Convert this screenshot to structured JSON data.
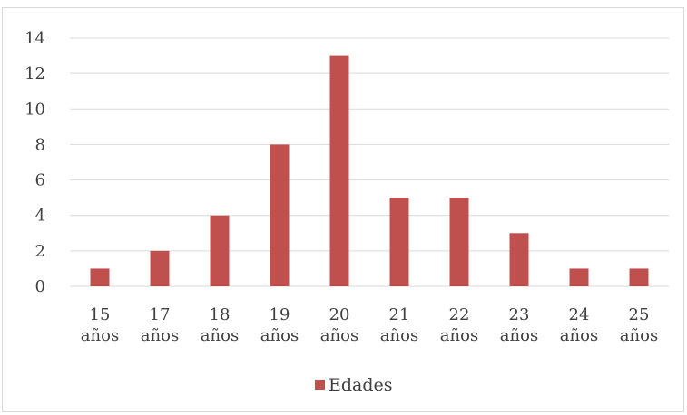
{
  "chart_data": {
    "type": "bar",
    "categories": [
      [
        "15",
        "años"
      ],
      [
        "17",
        "años"
      ],
      [
        "18",
        "años"
      ],
      [
        "19",
        "años"
      ],
      [
        "20",
        "años"
      ],
      [
        "21",
        "años"
      ],
      [
        "22",
        "años"
      ],
      [
        "23",
        "años"
      ],
      [
        "24",
        "años"
      ],
      [
        "25",
        "años"
      ]
    ],
    "series": [
      {
        "name": "Edades",
        "values": [
          1,
          2,
          4,
          8,
          13,
          5,
          5,
          3,
          1,
          1
        ],
        "color": "#c0504d"
      }
    ],
    "ylim": [
      0,
      14
    ],
    "yticks": [
      "0",
      "2",
      "4",
      "6",
      "8",
      "10",
      "12",
      "14"
    ],
    "grid": true,
    "legend": "bottom",
    "title": "",
    "xlabel": "",
    "ylabel": ""
  }
}
